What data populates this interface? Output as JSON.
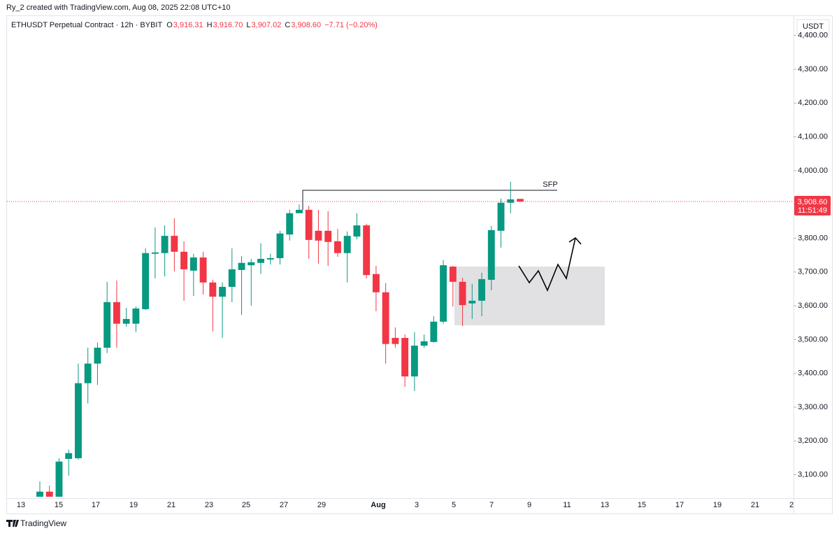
{
  "chart_data": {
    "type": "candlestick",
    "credit": "Ry_2 created with TradingView.com, Aug 08, 2025 22:08 UTC+10",
    "title": "ETHUSDT Perpetual Contract · 12h · BYBIT",
    "ohlc_legend": [
      {
        "key": "O",
        "text": "3,916.31"
      },
      {
        "key": "H",
        "text": "3,916.70"
      },
      {
        "key": "L",
        "text": "3,907.02"
      },
      {
        "key": "C",
        "text": "3,908.60"
      }
    ],
    "change": "−7.71 (−0.20%)",
    "currency": "USDT",
    "annotation": "SFP",
    "brand": "TradingView",
    "up_color": "#089981",
    "down_color": "#f23645",
    "last_price": {
      "value": 3908.6,
      "label": "3,908.60"
    },
    "countdown": "11:51:49",
    "x_axis_labels": [
      "13",
      "15",
      "17",
      "19",
      "21",
      "23",
      "25",
      "27",
      "29",
      "Aug",
      "3",
      "5",
      "7",
      "9",
      "11",
      "13",
      "15",
      "17",
      "19",
      "21",
      "2"
    ],
    "ylim": [
      3035,
      4447
    ],
    "yticks": [
      {
        "value": 3100,
        "label": "3,100.00"
      },
      {
        "value": 3200,
        "label": "3,200.00"
      },
      {
        "value": 3300,
        "label": "3,300.00"
      },
      {
        "value": 3400,
        "label": "3,400.00"
      },
      {
        "value": 3500,
        "label": "3,500.00"
      },
      {
        "value": 3600,
        "label": "3,600.00"
      },
      {
        "value": 3700,
        "label": "3,700.00"
      },
      {
        "value": 3800,
        "label": "3,800.00"
      },
      {
        "value": 3900,
        "label": "3,900.00"
      },
      {
        "value": 4000,
        "label": "4,000.00"
      },
      {
        "value": 4100,
        "label": "4,100.00"
      },
      {
        "value": 4200,
        "label": "4,200.00"
      },
      {
        "value": 4300,
        "label": "4,300.00"
      },
      {
        "value": 4400,
        "label": "4,400.00"
      }
    ],
    "open": [
      3035,
      3050,
      3035,
      3147,
      3149,
      3371,
      3429,
      3476,
      3611,
      3547,
      3547,
      3590,
      3754,
      3756,
      3807,
      3760,
      3704,
      3743,
      3669,
      3627,
      3656,
      3706,
      3720,
      3727,
      3737,
      3741,
      3811,
      3874,
      3884,
      3822,
      3822,
      3791,
      3756,
      3805,
      3838,
      3694,
      3640,
      3505,
      3505,
      3391,
      3482,
      3493,
      3553,
      3716,
      3671,
      3607,
      3615,
      3677,
      3822,
      3905,
      3916.31
    ],
    "high": [
      3080,
      3068,
      3149,
      3174,
      3429,
      3476,
      3491,
      3671,
      3675,
      3594,
      3598,
      3770,
      3832,
      3838,
      3859,
      3791,
      3754,
      3760,
      3677,
      3669,
      3770,
      3747,
      3739,
      3785,
      3754,
      3822,
      3884,
      3900,
      3896,
      3884,
      3880,
      3828,
      3820,
      3874,
      3843,
      3718,
      3667,
      3536,
      3515,
      3522,
      3515,
      3569,
      3735,
      3718,
      3683,
      3665,
      3698,
      3836,
      3917,
      3967,
      3916.7
    ],
    "low": [
      3035,
      3035,
      3035,
      3097,
      3145,
      3311,
      3366,
      3460,
      3476,
      3538,
      3522,
      3588,
      3681,
      3687,
      3702,
      3615,
      3629,
      3633,
      3524,
      3505,
      3611,
      3573,
      3600,
      3694,
      3722,
      3722,
      3793,
      3874,
      3739,
      3725,
      3718,
      3745,
      3669,
      3797,
      3681,
      3584,
      3429,
      3476,
      3360,
      3348,
      3476,
      3491,
      3547,
      3598,
      3540,
      3561,
      3569,
      3646,
      3772,
      3874,
      3907.02
    ],
    "close": [
      3050,
      3035,
      3139,
      3164,
      3371,
      3429,
      3476,
      3611,
      3547,
      3561,
      3592,
      3756,
      3758,
      3807,
      3760,
      3708,
      3743,
      3669,
      3627,
      3656,
      3708,
      3727,
      3729,
      3739,
      3741,
      3814,
      3874,
      3884,
      3795,
      3793,
      3789,
      3756,
      3807,
      3838,
      3691,
      3640,
      3487,
      3487,
      3391,
      3482,
      3495,
      3553,
      3720,
      3671,
      3602,
      3615,
      3679,
      3824,
      3905,
      3915,
      3908.6
    ]
  }
}
